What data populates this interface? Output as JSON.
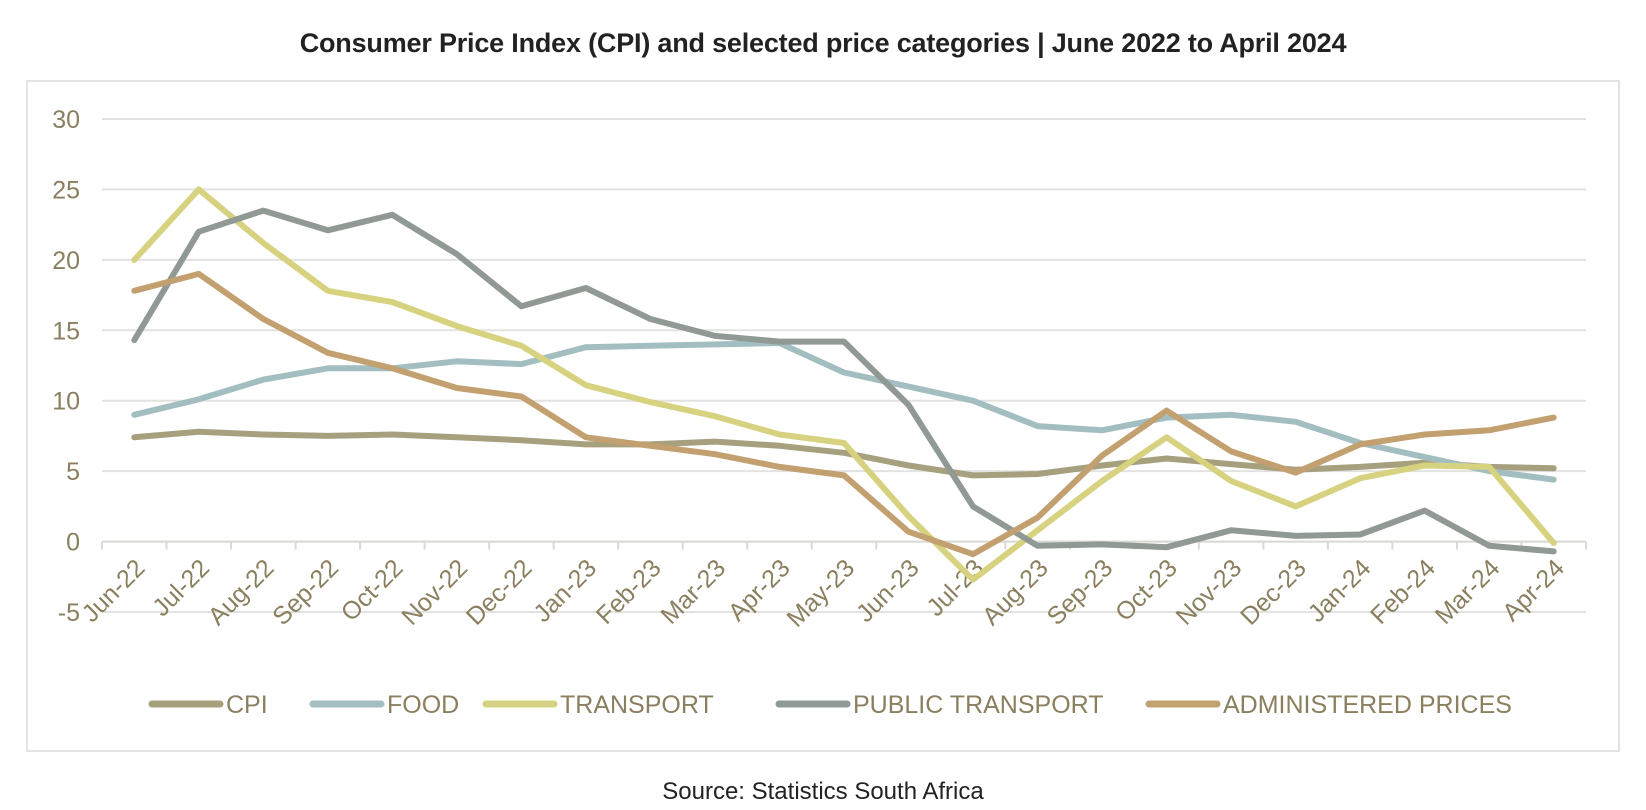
{
  "chart_data": {
    "type": "line",
    "title": "Consumer Price Index (CPI) and selected price categories |  June 2022 to April 2024",
    "source": "Source: Statistics South Africa",
    "ylim": [
      -5,
      30
    ],
    "yticks": [
      -5,
      0,
      5,
      10,
      15,
      20,
      25,
      30
    ],
    "grid": true,
    "legend_position": "bottom",
    "categories": [
      "Jun-22",
      "Jul-22",
      "Aug-22",
      "Sep-22",
      "Oct-22",
      "Nov-22",
      "Dec-22",
      "Jan-23",
      "Feb-23",
      "Mar-23",
      "Apr-23",
      "May-23",
      "Jun-23",
      "Jul-23",
      "Aug-23",
      "Sep-23",
      "Oct-23",
      "Nov-23",
      "Dec-23",
      "Jan-24",
      "Feb-24",
      "Mar-24",
      "Apr-24"
    ],
    "series": [
      {
        "name": "CPI",
        "color": "#a6a07f",
        "values": [
          7.4,
          7.8,
          7.6,
          7.5,
          7.6,
          7.4,
          7.2,
          6.9,
          6.9,
          7.1,
          6.8,
          6.3,
          5.4,
          4.7,
          4.8,
          5.4,
          5.9,
          5.5,
          5.1,
          5.3,
          5.6,
          5.3,
          5.2
        ]
      },
      {
        "name": "FOOD",
        "color": "#a3bec0",
        "values": [
          9.0,
          10.1,
          11.5,
          12.3,
          12.3,
          12.8,
          12.6,
          13.8,
          13.9,
          14.0,
          14.1,
          12.0,
          11.0,
          10.0,
          8.2,
          7.9,
          8.8,
          9.0,
          8.5,
          7.0,
          6.0,
          5.0,
          4.4
        ]
      },
      {
        "name": "TRANSPORT",
        "color": "#d6d27f",
        "values": [
          20.0,
          25.0,
          21.2,
          17.8,
          17.0,
          15.3,
          13.9,
          11.1,
          9.9,
          8.9,
          7.6,
          7.0,
          1.8,
          -2.7,
          0.8,
          4.3,
          7.4,
          4.3,
          2.5,
          4.5,
          5.4,
          5.3,
          -0.1
        ]
      },
      {
        "name": "PUBLIC TRANSPORT",
        "color": "#909994",
        "values": [
          14.3,
          22.0,
          23.5,
          22.1,
          23.2,
          20.4,
          16.7,
          18.0,
          15.8,
          14.6,
          14.2,
          14.2,
          9.7,
          2.5,
          -0.3,
          -0.2,
          -0.4,
          0.8,
          0.4,
          0.5,
          2.2,
          -0.3,
          -0.7
        ]
      },
      {
        "name": "ADMINISTERED PRICES",
        "color": "#c3a06f",
        "values": [
          17.8,
          19.0,
          15.8,
          13.4,
          12.3,
          10.9,
          10.3,
          7.4,
          6.8,
          6.2,
          5.3,
          4.7,
          0.7,
          -0.9,
          1.7,
          6.1,
          9.3,
          6.4,
          4.9,
          6.9,
          7.6,
          7.9,
          8.8
        ]
      }
    ]
  }
}
